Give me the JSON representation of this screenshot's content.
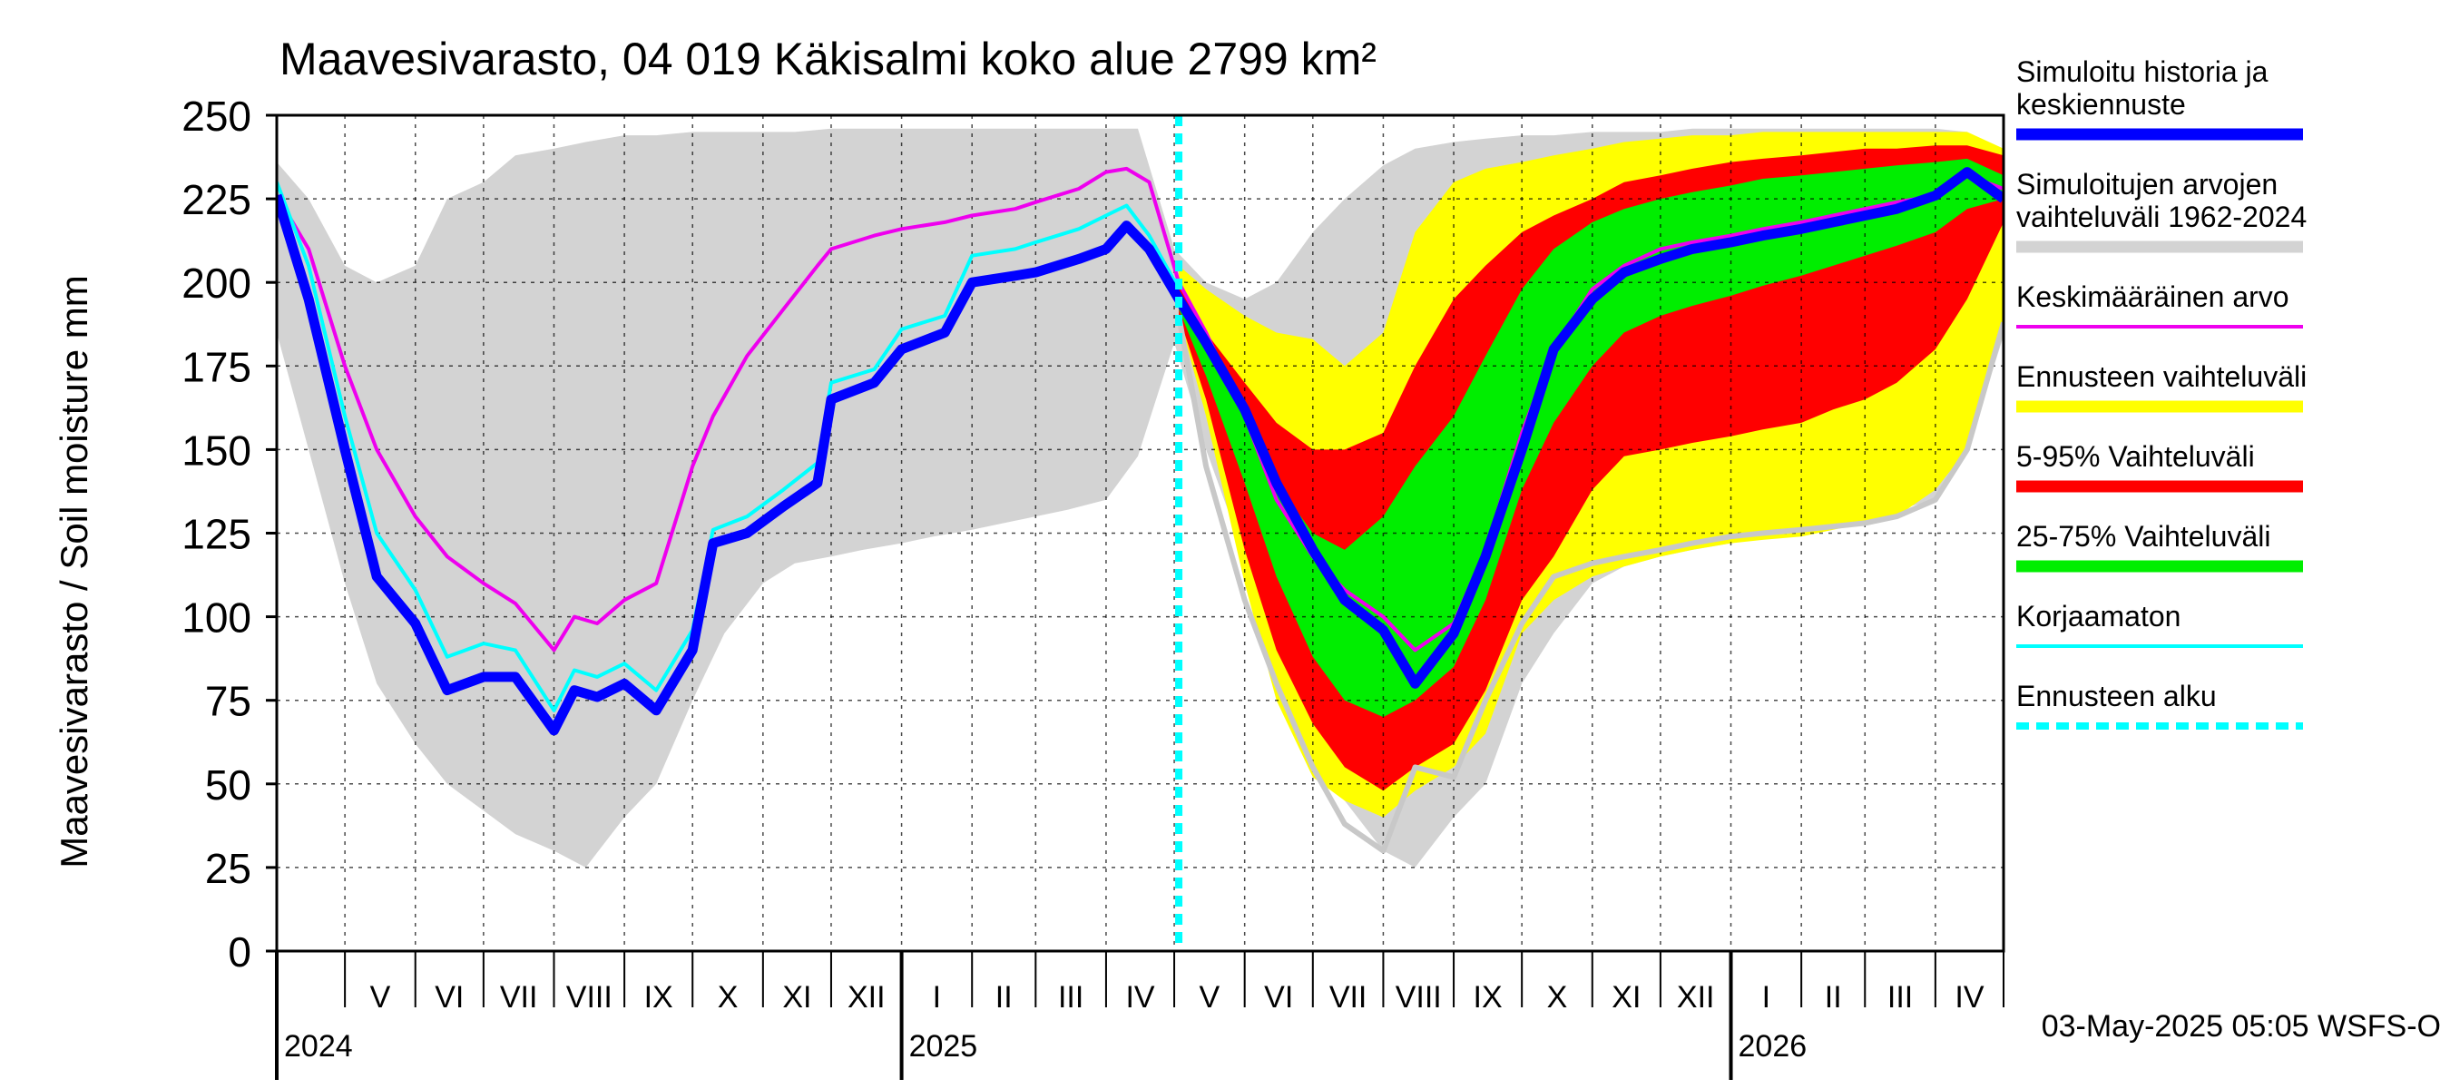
{
  "chart_data": {
    "type": "area",
    "title": "Maavesivarasto, 04 019 Käkisalmi koko alue 2799 km²",
    "ylabel": "Maavesivarasto / Soil moisture   mm",
    "xlabel": "",
    "ylim": [
      0,
      250
    ],
    "xlim": [
      "2024-04-01",
      "2026-05-01"
    ],
    "forecast_start": "2025-05-03",
    "yticks": [
      0,
      25,
      50,
      75,
      100,
      125,
      150,
      175,
      200,
      225,
      250
    ],
    "month_labels": [
      "V",
      "VI",
      "VII",
      "VIII",
      "IX",
      "X",
      "XI",
      "XII",
      "I",
      "II",
      "III",
      "IV",
      "V",
      "VI",
      "VII",
      "VIII",
      "IX",
      "X",
      "XI",
      "XII",
      "I",
      "II",
      "III",
      "IV"
    ],
    "year_labels": [
      "2024",
      "2025",
      "2026"
    ],
    "grid": true,
    "legend_position": "right",
    "footer": "03-May-2025 05:05 WSFS-O",
    "colors": {
      "history_range": "#d3d3d3",
      "forecast_range": "#ffff00",
      "p5_95": "#ff0000",
      "p25_75": "#00ee00",
      "simulated": "#0000ff",
      "mean": "#ee00ee",
      "uncorrected": "#00ffff",
      "forecast_start": "#00ffff"
    },
    "legend": [
      {
        "label": "Simuloitu historia ja keskiennuste",
        "color": "#0000ff",
        "style": "thick"
      },
      {
        "label": "Simuloitujen arvojen vaihteluväli 1962-2024",
        "color": "#d3d3d3",
        "style": "thick"
      },
      {
        "label": "Keskimääräinen arvo",
        "color": "#ee00ee",
        "style": "line"
      },
      {
        "label": "Ennusteen vaihteluväli",
        "color": "#ffff00",
        "style": "thick"
      },
      {
        "label": "5-95% Vaihteluväli",
        "color": "#ff0000",
        "style": "thick"
      },
      {
        "label": "25-75% Vaihteluväli",
        "color": "#00ee00",
        "style": "thick"
      },
      {
        "label": "Korjaamaton",
        "color": "#00ffff",
        "style": "line"
      },
      {
        "label": "Ennusteen alku",
        "color": "#00ffff",
        "style": "dashed"
      }
    ],
    "series": {
      "history_range": {
        "x": [
          "2024-04-01",
          "2024-04-15",
          "2024-05-01",
          "2024-05-15",
          "2024-06-01",
          "2024-06-15",
          "2024-07-01",
          "2024-07-15",
          "2024-08-01",
          "2024-08-15",
          "2024-09-01",
          "2024-09-15",
          "2024-10-01",
          "2024-10-15",
          "2024-11-01",
          "2024-11-15",
          "2024-12-01",
          "2024-12-15",
          "2025-01-01",
          "2025-01-15",
          "2025-02-01",
          "2025-02-15",
          "2025-03-01",
          "2025-03-15",
          "2025-04-01",
          "2025-04-15",
          "2025-05-01",
          "2025-05-15",
          "2025-06-01",
          "2025-06-15",
          "2025-07-01",
          "2025-07-15",
          "2025-08-01",
          "2025-08-15",
          "2025-09-01",
          "2025-09-15",
          "2025-10-01",
          "2025-10-15",
          "2025-11-01",
          "2025-11-15",
          "2025-12-01",
          "2025-12-15",
          "2026-01-01",
          "2026-01-15",
          "2026-02-01",
          "2026-02-15",
          "2026-03-01",
          "2026-03-15",
          "2026-04-01",
          "2026-04-15",
          "2026-05-01"
        ],
        "low": [
          185,
          150,
          110,
          80,
          62,
          50,
          42,
          35,
          30,
          25,
          40,
          50,
          75,
          95,
          110,
          116,
          118,
          120,
          122,
          124,
          126,
          128,
          130,
          132,
          135,
          148,
          182,
          150,
          118,
          85,
          60,
          45,
          30,
          25,
          40,
          50,
          80,
          95,
          110,
          115,
          118,
          120,
          122,
          124,
          126,
          128,
          130,
          132,
          135,
          150,
          184
        ],
        "high": [
          236,
          225,
          205,
          200,
          205,
          225,
          230,
          238,
          240,
          242,
          244,
          244,
          245,
          245,
          245,
          245,
          246,
          246,
          246,
          246,
          246,
          246,
          246,
          246,
          246,
          246,
          210,
          200,
          195,
          200,
          215,
          225,
          235,
          240,
          242,
          243,
          244,
          244,
          245,
          245,
          245,
          246,
          246,
          246,
          246,
          246,
          246,
          246,
          246,
          245,
          236
        ]
      },
      "forecast_range": {
        "x": [
          "2025-05-03",
          "2025-05-15",
          "2025-06-01",
          "2025-06-15",
          "2025-07-01",
          "2025-07-15",
          "2025-08-01",
          "2025-08-15",
          "2025-09-01",
          "2025-09-15",
          "2025-10-01",
          "2025-10-15",
          "2025-11-01",
          "2025-11-15",
          "2025-12-01",
          "2025-12-15",
          "2026-01-01",
          "2026-01-15",
          "2026-02-01",
          "2026-02-15",
          "2026-03-01",
          "2026-03-15",
          "2026-04-01",
          "2026-04-15",
          "2026-05-01"
        ],
        "low": [
          190,
          160,
          110,
          75,
          52,
          45,
          40,
          48,
          55,
          65,
          95,
          105,
          112,
          115,
          118,
          120,
          122,
          123,
          124,
          126,
          128,
          130,
          138,
          150,
          185
        ],
        "high": [
          205,
          198,
          190,
          185,
          183,
          175,
          185,
          215,
          230,
          234,
          236,
          238,
          240,
          242,
          243,
          244,
          244,
          245,
          245,
          245,
          245,
          245,
          245,
          245,
          240
        ]
      },
      "p5_95": {
        "x": [
          "2025-05-03",
          "2025-05-15",
          "2025-06-01",
          "2025-06-15",
          "2025-07-01",
          "2025-07-15",
          "2025-08-01",
          "2025-08-15",
          "2025-09-01",
          "2025-09-15",
          "2025-10-01",
          "2025-10-15",
          "2025-11-01",
          "2025-11-15",
          "2025-12-01",
          "2025-12-15",
          "2026-01-01",
          "2026-01-15",
          "2026-02-01",
          "2026-02-15",
          "2026-03-01",
          "2026-03-15",
          "2026-04-01",
          "2026-04-15",
          "2026-05-01"
        ],
        "low": [
          190,
          165,
          120,
          90,
          68,
          55,
          48,
          55,
          62,
          78,
          105,
          118,
          138,
          148,
          150,
          152,
          154,
          156,
          158,
          162,
          165,
          170,
          180,
          195,
          218
        ],
        "high": [
          200,
          185,
          170,
          158,
          150,
          150,
          155,
          175,
          195,
          205,
          215,
          220,
          225,
          230,
          232,
          234,
          236,
          237,
          238,
          239,
          240,
          240,
          241,
          241,
          238
        ]
      },
      "p25_75": {
        "x": [
          "2025-05-03",
          "2025-05-15",
          "2025-06-01",
          "2025-06-15",
          "2025-07-01",
          "2025-07-15",
          "2025-08-01",
          "2025-08-15",
          "2025-09-01",
          "2025-09-15",
          "2025-10-01",
          "2025-10-15",
          "2025-11-01",
          "2025-11-15",
          "2025-12-01",
          "2025-12-15",
          "2026-01-01",
          "2026-01-15",
          "2026-02-01",
          "2026-02-15",
          "2026-03-01",
          "2026-03-15",
          "2026-04-01",
          "2026-04-15",
          "2026-05-01"
        ],
        "low": [
          192,
          172,
          140,
          112,
          88,
          75,
          70,
          75,
          85,
          105,
          138,
          158,
          175,
          185,
          190,
          193,
          196,
          199,
          202,
          205,
          208,
          211,
          215,
          222,
          225
        ],
        "high": [
          196,
          182,
          160,
          140,
          125,
          120,
          130,
          145,
          160,
          178,
          198,
          210,
          218,
          222,
          225,
          227,
          229,
          231,
          232,
          233,
          234,
          235,
          236,
          237,
          232
        ]
      },
      "simulated": {
        "x": [
          "2024-04-01",
          "2024-04-15",
          "2024-05-01",
          "2024-05-15",
          "2024-06-01",
          "2024-06-15",
          "2024-07-01",
          "2024-07-15",
          "2024-08-01",
          "2024-08-10",
          "2024-08-20",
          "2024-09-01",
          "2024-09-15",
          "2024-10-01",
          "2024-10-10",
          "2024-10-25",
          "2024-11-10",
          "2024-11-25",
          "2024-12-01",
          "2024-12-20",
          "2025-01-01",
          "2025-01-20",
          "2025-02-01",
          "2025-02-20",
          "2025-03-01",
          "2025-03-20",
          "2025-04-01",
          "2025-04-10",
          "2025-04-20",
          "2025-05-03",
          "2025-05-15",
          "2025-06-01",
          "2025-06-15",
          "2025-07-01",
          "2025-07-15",
          "2025-08-01",
          "2025-08-15",
          "2025-09-01",
          "2025-09-15",
          "2025-10-01",
          "2025-10-15",
          "2025-11-01",
          "2025-11-15",
          "2025-12-01",
          "2025-12-15",
          "2026-01-01",
          "2026-01-15",
          "2026-02-01",
          "2026-02-15",
          "2026-03-01",
          "2026-03-15",
          "2026-04-01",
          "2026-04-15",
          "2026-05-01"
        ],
        "values": [
          226,
          195,
          150,
          112,
          98,
          78,
          82,
          82,
          66,
          78,
          76,
          80,
          72,
          90,
          122,
          125,
          133,
          140,
          165,
          170,
          180,
          185,
          200,
          202,
          203,
          207,
          210,
          217,
          210,
          195,
          182,
          162,
          140,
          120,
          105,
          96,
          80,
          95,
          118,
          150,
          180,
          195,
          203,
          207,
          210,
          212,
          214,
          216,
          218,
          220,
          222,
          226,
          233,
          225
        ]
      },
      "mean": {
        "x": [
          "2024-04-01",
          "2024-04-15",
          "2024-05-01",
          "2024-05-15",
          "2024-06-01",
          "2024-06-15",
          "2024-07-01",
          "2024-07-15",
          "2024-08-01",
          "2024-08-10",
          "2024-08-20",
          "2024-09-01",
          "2024-09-15",
          "2024-10-01",
          "2024-10-10",
          "2024-10-25",
          "2024-11-10",
          "2024-11-25",
          "2024-12-01",
          "2024-12-20",
          "2025-01-01",
          "2025-01-20",
          "2025-02-01",
          "2025-02-20",
          "2025-03-01",
          "2025-03-20",
          "2025-04-01",
          "2025-04-10",
          "2025-04-20",
          "2025-05-03",
          "2025-05-15",
          "2025-06-01",
          "2025-06-15",
          "2025-07-01",
          "2025-07-15",
          "2025-08-01",
          "2025-08-15",
          "2025-09-01",
          "2025-09-15",
          "2025-10-01",
          "2025-10-15",
          "2025-11-01",
          "2025-11-15",
          "2025-12-01",
          "2025-12-15",
          "2026-01-01",
          "2026-01-15",
          "2026-02-01",
          "2026-02-15",
          "2026-03-01",
          "2026-03-15",
          "2026-04-01",
          "2026-04-15",
          "2026-05-01"
        ],
        "values": [
          226,
          210,
          175,
          150,
          130,
          118,
          110,
          104,
          90,
          100,
          98,
          105,
          110,
          145,
          160,
          178,
          192,
          205,
          210,
          214,
          216,
          218,
          220,
          222,
          224,
          228,
          233,
          234,
          230,
          200,
          185,
          160,
          135,
          118,
          108,
          100,
          90,
          98,
          120,
          155,
          180,
          198,
          205,
          210,
          212,
          214,
          216,
          218,
          220,
          222,
          224,
          226,
          232,
          228
        ]
      },
      "uncorrected": {
        "x": [
          "2024-04-01",
          "2024-04-15",
          "2024-05-01",
          "2024-05-15",
          "2024-06-01",
          "2024-06-15",
          "2024-07-01",
          "2024-07-15",
          "2024-08-01",
          "2024-08-10",
          "2024-08-20",
          "2024-09-01",
          "2024-09-15",
          "2024-10-01",
          "2024-10-10",
          "2024-10-25",
          "2024-11-10",
          "2024-11-25",
          "2024-12-01",
          "2024-12-20",
          "2025-01-01",
          "2025-01-20",
          "2025-02-01",
          "2025-02-20",
          "2025-03-01",
          "2025-03-20",
          "2025-04-01",
          "2025-04-10",
          "2025-04-20",
          "2025-05-03"
        ],
        "values": [
          230,
          205,
          160,
          125,
          108,
          88,
          92,
          90,
          72,
          84,
          82,
          86,
          78,
          96,
          126,
          130,
          138,
          146,
          170,
          174,
          186,
          190,
          208,
          210,
          212,
          216,
          220,
          223,
          214,
          198
        ]
      },
      "grey_line": {
        "x": [
          "2025-05-03",
          "2025-05-15",
          "2025-06-01",
          "2025-06-15",
          "2025-07-01",
          "2025-07-15",
          "2025-08-01",
          "2025-08-15",
          "2025-09-01",
          "2025-09-15",
          "2025-10-01",
          "2025-10-15",
          "2025-11-01",
          "2025-11-15",
          "2025-12-01",
          "2025-12-15",
          "2026-01-01",
          "2026-01-15",
          "2026-02-01",
          "2026-02-15",
          "2026-03-01",
          "2026-03-15",
          "2026-04-01",
          "2026-04-15",
          "2026-05-01"
        ],
        "values": [
          190,
          145,
          105,
          80,
          55,
          38,
          30,
          55,
          52,
          75,
          98,
          112,
          116,
          118,
          120,
          122,
          124,
          125,
          126,
          127,
          128,
          130,
          135,
          150,
          188
        ]
      }
    }
  }
}
